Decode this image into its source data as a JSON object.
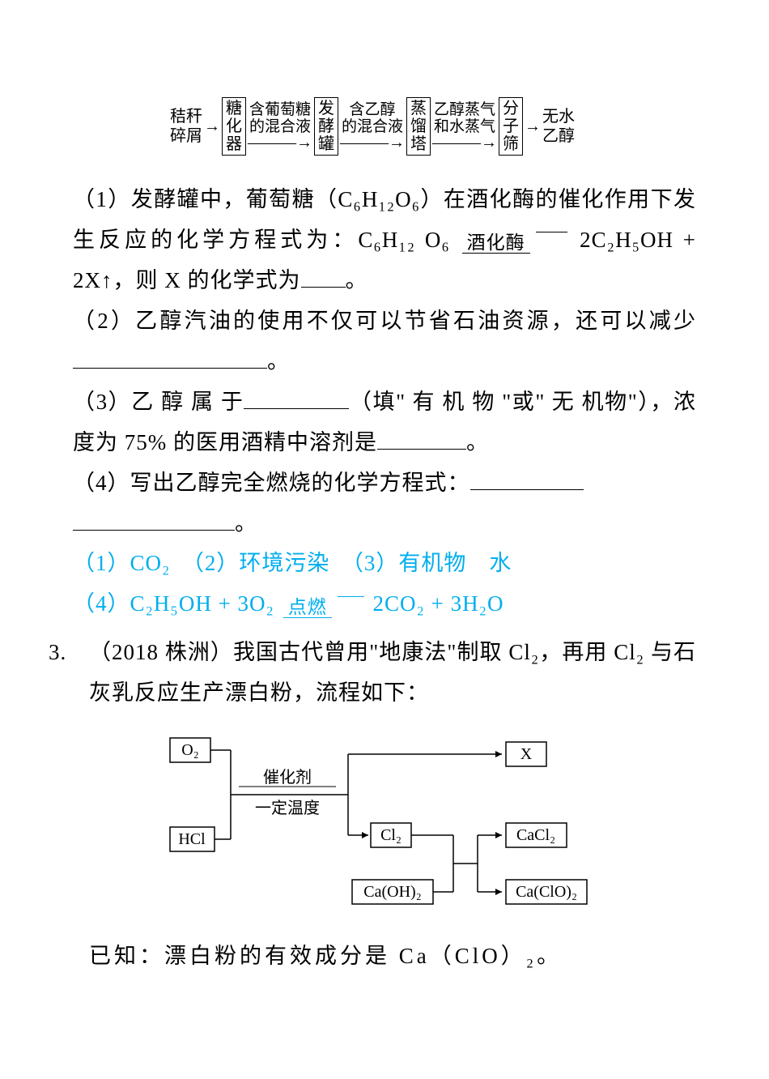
{
  "flowchart1": {
    "start": "秸秆\n碎屑",
    "box1": "糖\n化\n器",
    "label1": "含葡萄糖\n的混合液",
    "box2": "发\n酵\n罐",
    "label2": "含乙醇\n的混合液",
    "box3": "蒸\n馏\n塔",
    "label3": "乙醇蒸气\n和水蒸气",
    "box4": "分\n子\n筛",
    "end": "无水\n乙醇"
  },
  "q1": {
    "line1": "（1）发酵罐中，葡萄糖（C₆H₁₂O₆）在酒化酶的催化作用下发生反应的化学方程式为：C₆H₁₂ O₆",
    "catalyst": "酒化酶",
    "line2_after": " 2C₂H₅OH + 2X↑，则 X 的化学式为",
    "line2_end": "。"
  },
  "q2": {
    "text_a": "（2）乙醇汽油的使用不仅可以节省石油资源，还可以减少",
    "text_b": "。"
  },
  "q3": {
    "text_a": "（3）乙 醇 属 于",
    "text_b": "（填\" 有 机 物 \"或\" 无 机物\"），浓度为 75% 的医用酒精中溶剂是",
    "text_c": "。"
  },
  "q4": {
    "text_a": "（4）写出乙醇完全燃烧的化学方程式：",
    "text_b": "。"
  },
  "answers": {
    "a1": "（1）CO₂　（2）环境污染　（3）有机物　水",
    "a4_pre": "（4）C₂H₅OH + 3O₂ ",
    "a4_cat": "点燃",
    "a4_post": " 2CO₂ + 3H₂O"
  },
  "q_main3": {
    "num": "3. ",
    "body": "（2018 株洲）我国古代曾用\"地康法\"制取 Cl₂，再用 Cl₂ 与石灰乳反应生产漂白粉，流程如下："
  },
  "diagram2": {
    "o2": "O₂",
    "hcl": "HCl",
    "cat1": "催化剂",
    "cat2": "一定温度",
    "cl2": "Cl₂",
    "caoh2": "Ca(OH)₂",
    "x": "X",
    "cacl2": "CaCl₂",
    "caclo2": "Ca(ClO)₂"
  },
  "after": {
    "text": "已知：漂白粉的有效成分是 Ca（ClO）₂。"
  },
  "colors": {
    "text": "#000000",
    "answer": "#00aeef",
    "bg": "#ffffff"
  }
}
